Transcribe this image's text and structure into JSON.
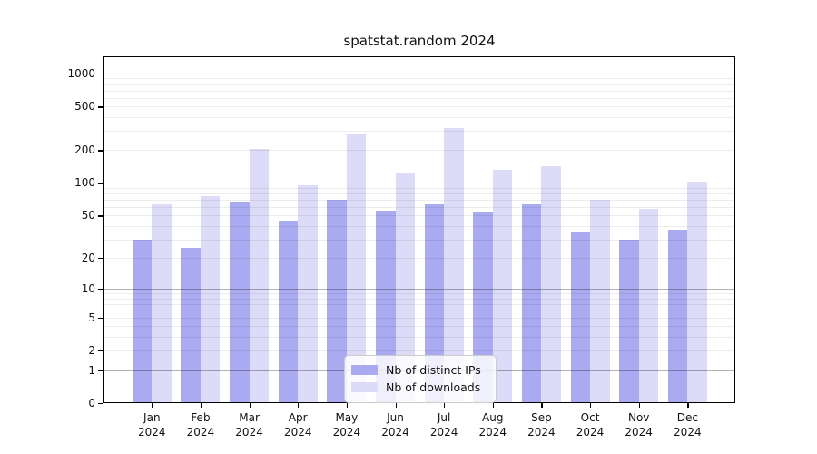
{
  "title": "spatstat.random 2024",
  "chart_data": {
    "type": "bar",
    "title": "spatstat.random 2024",
    "categories": [
      "Jan",
      "Feb",
      "Mar",
      "Apr",
      "May",
      "Jun",
      "Jul",
      "Aug",
      "Sep",
      "Oct",
      "Nov",
      "Dec"
    ],
    "category_year": "2024",
    "series": [
      {
        "name": "Nb of distinct IPs",
        "color": "#aaaaf0",
        "values": [
          30,
          25,
          66,
          45,
          70,
          55,
          63,
          54,
          64,
          35,
          30,
          37
        ]
      },
      {
        "name": "Nb of downloads",
        "color": "#dcdcf8",
        "values": [
          63,
          75,
          207,
          95,
          277,
          122,
          320,
          132,
          144,
          70,
          58,
          103
        ]
      }
    ],
    "yticks": [
      0,
      1,
      2,
      5,
      10,
      20,
      50,
      100,
      200,
      500,
      1000
    ],
    "yscale": "log1p",
    "ylim": [
      0,
      1435
    ],
    "xlabel": "",
    "ylabel": "",
    "grid": true,
    "legend_position": "inside-bottom-center"
  },
  "legend": {
    "items": [
      {
        "label": "Nb of distinct IPs",
        "color": "#aaaaf0"
      },
      {
        "label": "Nb of downloads",
        "color": "#dcdcf8"
      }
    ]
  },
  "colors": {
    "background": "#ffffff",
    "axis": "#000000",
    "grid_major": "#b3b3b3",
    "grid_minor": "#ebebeb",
    "bar_distinct_ips": "#aaaaf0",
    "bar_downloads": "#dcdcf8"
  }
}
